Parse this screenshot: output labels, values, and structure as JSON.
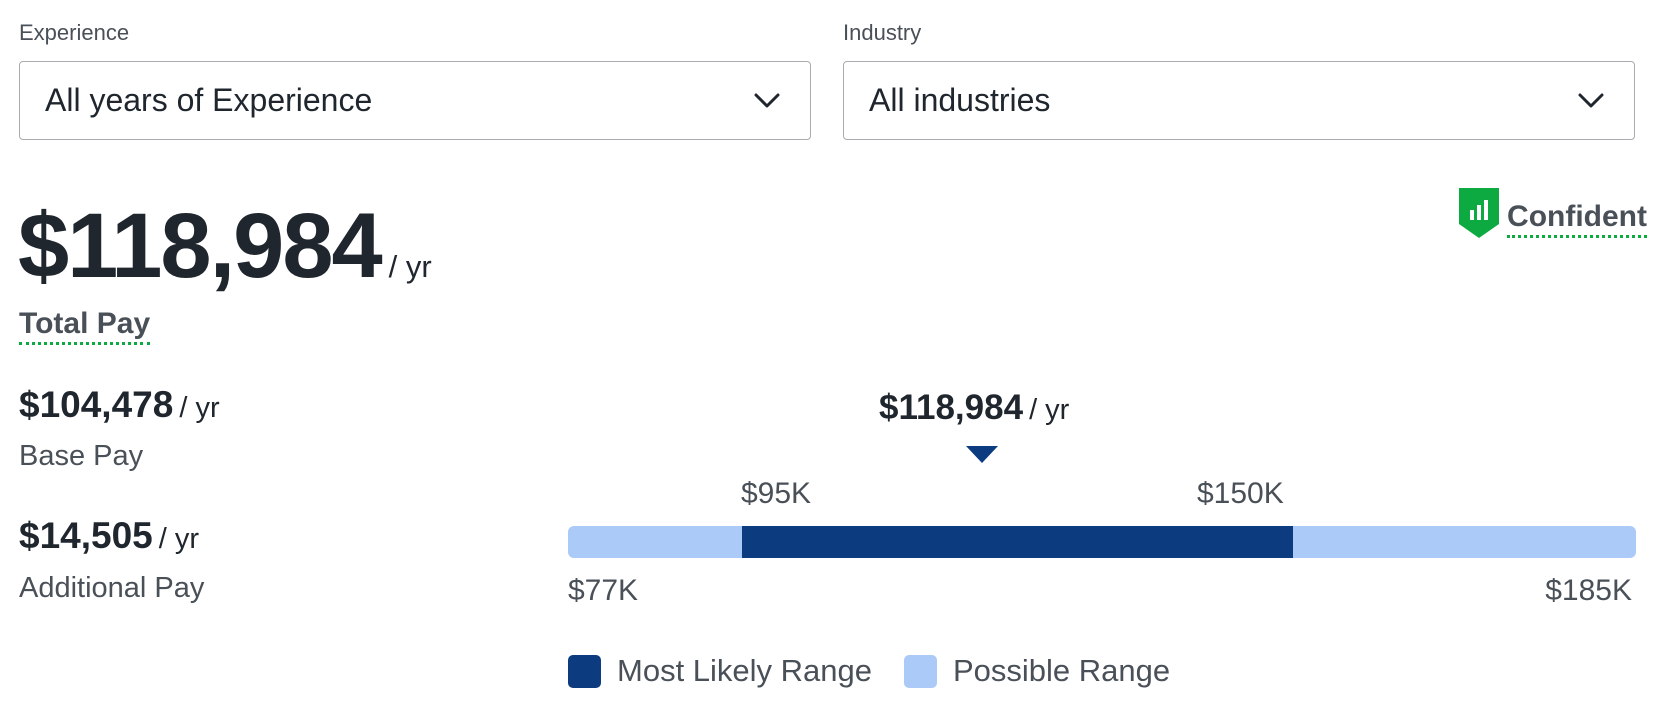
{
  "filters": {
    "experience": {
      "label": "Experience",
      "value": "All years of Experience"
    },
    "industry": {
      "label": "Industry",
      "value": "All industries"
    }
  },
  "total": {
    "amount": "$118,984",
    "per": "/ yr",
    "label": "Total Pay"
  },
  "confidence": {
    "label": "Confident",
    "icon": "bar-chart-shield-icon",
    "color": "#0caa41"
  },
  "base": {
    "amount": "$104,478",
    "per": "/ yr",
    "label": "Base Pay"
  },
  "additional": {
    "amount": "$14,505",
    "per": "/ yr",
    "label": "Additional Pay"
  },
  "range": {
    "median": "$118,984",
    "median_per": "/ yr",
    "likely_low": "$95K",
    "likely_high": "$150K",
    "possible_low": "$77K",
    "possible_high": "$185K"
  },
  "legend": {
    "most_likely": "Most Likely Range",
    "possible": "Possible Range",
    "most_likely_color": "#0d3b7f",
    "possible_color": "#abcaf7"
  }
}
